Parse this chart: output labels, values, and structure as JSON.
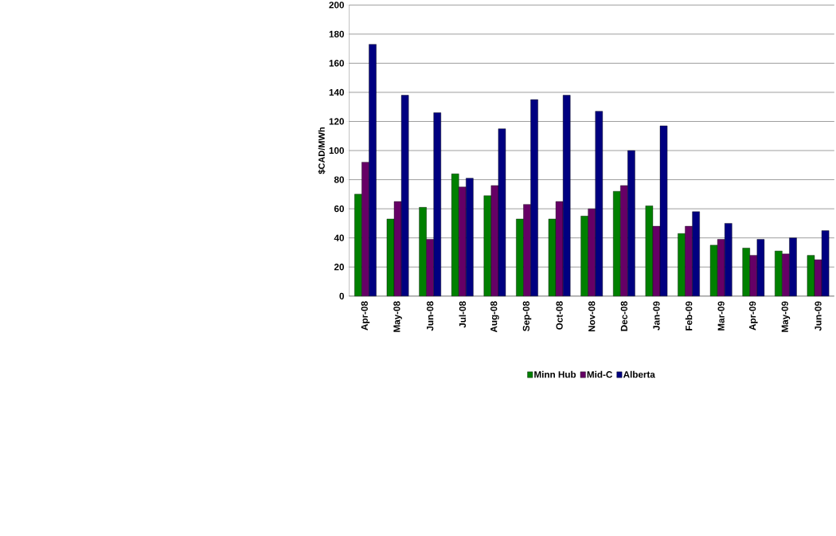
{
  "chart_data": {
    "type": "bar",
    "ylabel": "$CAD/MWh",
    "categories": [
      "Apr-08",
      "May-08",
      "Jun-08",
      "Jul-08",
      "Aug-08",
      "Sep-08",
      "Oct-08",
      "Nov-08",
      "Dec-08",
      "Jan-09",
      "Feb-09",
      "Mar-09",
      "Apr-09",
      "May-09",
      "Jun-09"
    ],
    "series": [
      {
        "name": "Minn Hub",
        "color": "#008000",
        "values": [
          70,
          53,
          61,
          84,
          69,
          53,
          53,
          55,
          72,
          62,
          43,
          35,
          33,
          31,
          28
        ]
      },
      {
        "name": "Mid-C",
        "color": "#660066",
        "values": [
          92,
          65,
          39,
          75,
          76,
          63,
          65,
          60,
          76,
          48,
          48,
          39,
          28,
          29,
          25
        ]
      },
      {
        "name": "Alberta",
        "color": "#000080",
        "values": [
          173,
          138,
          126,
          81,
          115,
          135,
          138,
          127,
          100,
          117,
          58,
          50,
          39,
          40,
          45
        ]
      }
    ],
    "ylim": [
      0,
      200
    ],
    "yticks": [
      0,
      20,
      40,
      60,
      80,
      100,
      120,
      140,
      160,
      180,
      200
    ],
    "grid": "y",
    "legend": "bottom"
  }
}
